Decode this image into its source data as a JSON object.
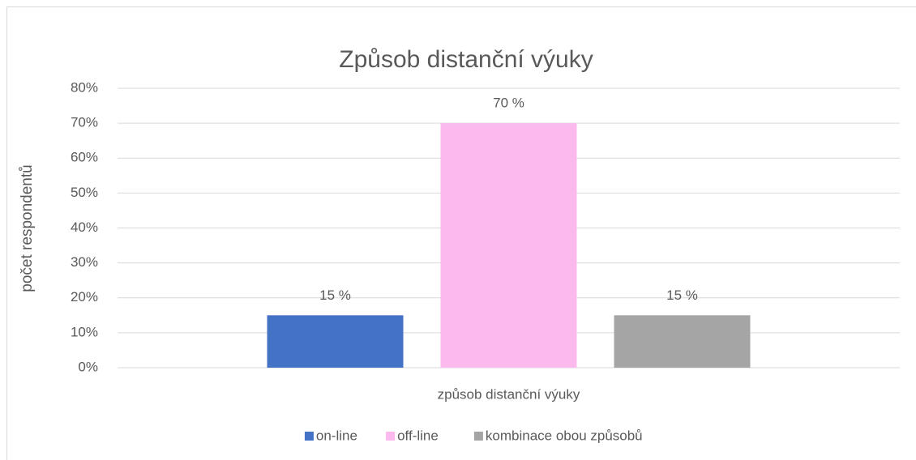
{
  "chart_data": {
    "type": "bar",
    "title": "Způsob distanční výuky",
    "y_label": "počet respondentů",
    "categories": [
      "způsob distanční výuky"
    ],
    "series": [
      {
        "name": "on-line",
        "color": "#4472c4",
        "values": [
          15
        ],
        "value_labels": [
          "15 %"
        ]
      },
      {
        "name": "off-line",
        "color": "#fbb9ee",
        "values": [
          70
        ],
        "value_labels": [
          "70 %"
        ]
      },
      {
        "name": "kombinace obou způsobů",
        "color": "#a5a5a5",
        "values": [
          15
        ],
        "value_labels": [
          "15 %"
        ]
      }
    ],
    "ylim": [
      0,
      80
    ],
    "yticks": [
      {
        "value": 0,
        "label": "0%"
      },
      {
        "value": 10,
        "label": "10%"
      },
      {
        "value": 20,
        "label": "20%"
      },
      {
        "value": 30,
        "label": "30%"
      },
      {
        "value": 40,
        "label": "40%"
      },
      {
        "value": 50,
        "label": "50%"
      },
      {
        "value": 60,
        "label": "60%"
      },
      {
        "value": 70,
        "label": "70%"
      },
      {
        "value": 80,
        "label": "80%"
      }
    ],
    "grid": true,
    "legend": "bottom"
  }
}
